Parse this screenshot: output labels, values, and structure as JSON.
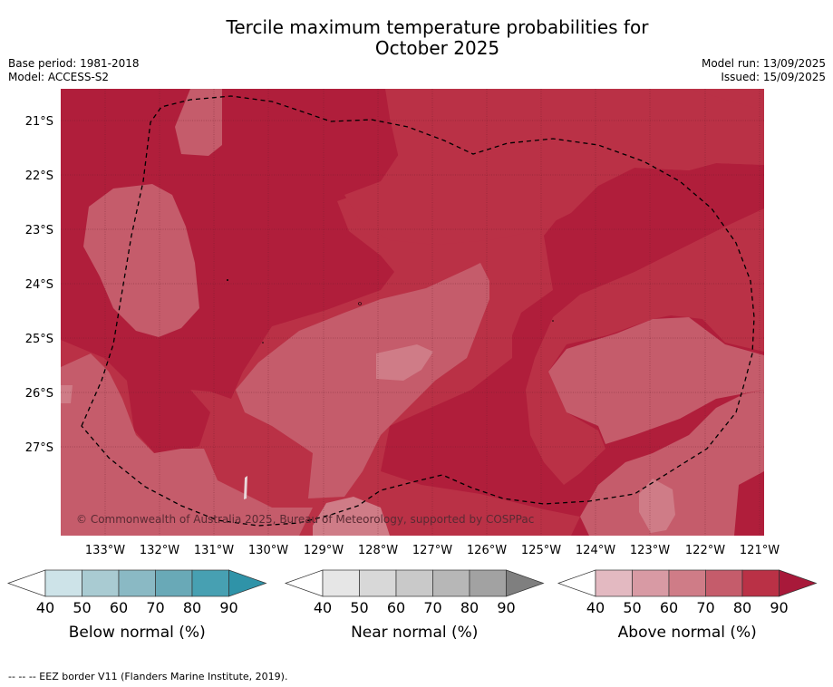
{
  "title_line1": "Tercile maximum temperature probabilities for",
  "title_line2": "October 2025",
  "base_period": "Base period: 1981-2018",
  "model": "Model: ACCESS-S2",
  "model_run": "Model run: 13/09/2025",
  "issued": "Issued: 15/09/2025",
  "copyright": "© Commonwealth of Australia 2025, Bureau of Meteorology, supported by COSPPac",
  "footer": "--  --  -- EEZ border V11 (Flanders Marine Institute, 2019).",
  "lat_labels": [
    "21°S",
    "22°S",
    "23°S",
    "24°S",
    "25°S",
    "26°S",
    "27°S"
  ],
  "lon_labels": [
    "133°W",
    "132°W",
    "131°W",
    "130°W",
    "129°W",
    "128°W",
    "127°W",
    "126°W",
    "125°W",
    "124°W",
    "123°W",
    "122°W",
    "121°W"
  ],
  "legends": [
    {
      "title": "Below normal (%)",
      "ticks": [
        "40",
        "50",
        "60",
        "70",
        "80",
        "90"
      ],
      "colors": [
        "#ffffff",
        "#cde3e8",
        "#a9cbd2",
        "#8ab9c4",
        "#69a9b7",
        "#47a0b2",
        "#2f93a8"
      ]
    },
    {
      "title": "Near normal (%)",
      "ticks": [
        "40",
        "50",
        "60",
        "70",
        "80",
        "90"
      ],
      "colors": [
        "#ffffff",
        "#e6e6e6",
        "#d8d8d8",
        "#c9c9c9",
        "#b7b7b7",
        "#a2a2a2",
        "#7f7f7f"
      ]
    },
    {
      "title": "Above normal (%)",
      "ticks": [
        "40",
        "50",
        "60",
        "70",
        "80",
        "90"
      ],
      "colors": [
        "#ffffff",
        "#e3b9c1",
        "#d89aa4",
        "#cf7c87",
        "#c55c6b",
        "#ba3146",
        "#a8193a"
      ]
    }
  ],
  "map_colors": {
    "c60": "#cf7c87",
    "c70": "#c55c6b",
    "c80": "#ba3146",
    "c90": "#b01e3b"
  }
}
